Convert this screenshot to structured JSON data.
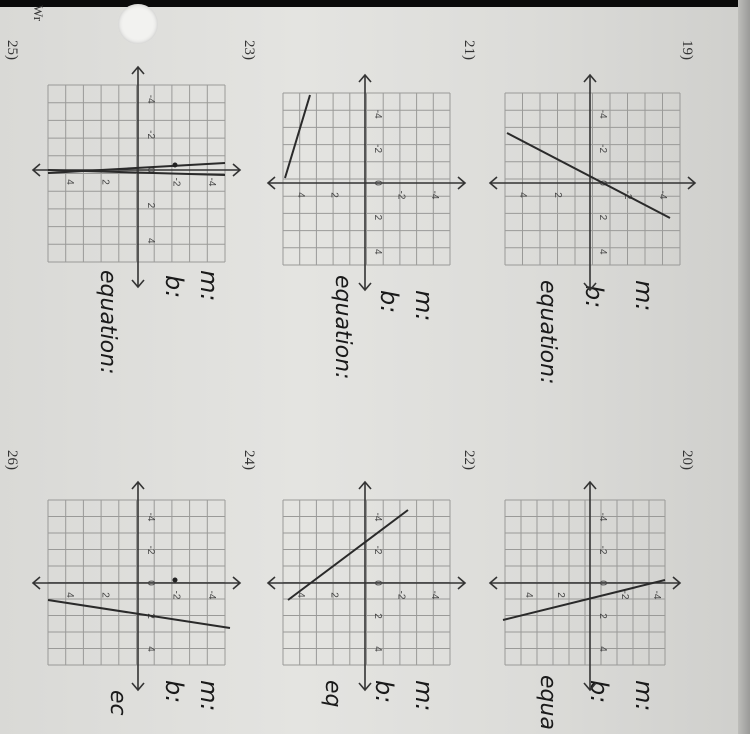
{
  "worksheet": {
    "problems": [
      {
        "number": "19)",
        "labels": [
          "m:",
          "b:",
          "equation:"
        ]
      },
      {
        "number": "20)",
        "labels": [
          "m:",
          "b:",
          "equa"
        ]
      },
      {
        "number": "21)",
        "labels": [
          "m:",
          "b:",
          "equation:"
        ]
      },
      {
        "number": "22)",
        "labels": [
          "m:",
          "b:",
          "eq"
        ]
      },
      {
        "number": "23)",
        "labels": [
          "m:",
          "b:",
          "equation:"
        ]
      },
      {
        "number": "24)",
        "labels": [
          "m:",
          "b:",
          "ec"
        ]
      },
      {
        "number": "25)"
      },
      {
        "number": "26)"
      }
    ],
    "tick_labels": [
      "-4",
      "-2",
      "0",
      "2",
      "4"
    ],
    "mark": "Wr"
  }
}
